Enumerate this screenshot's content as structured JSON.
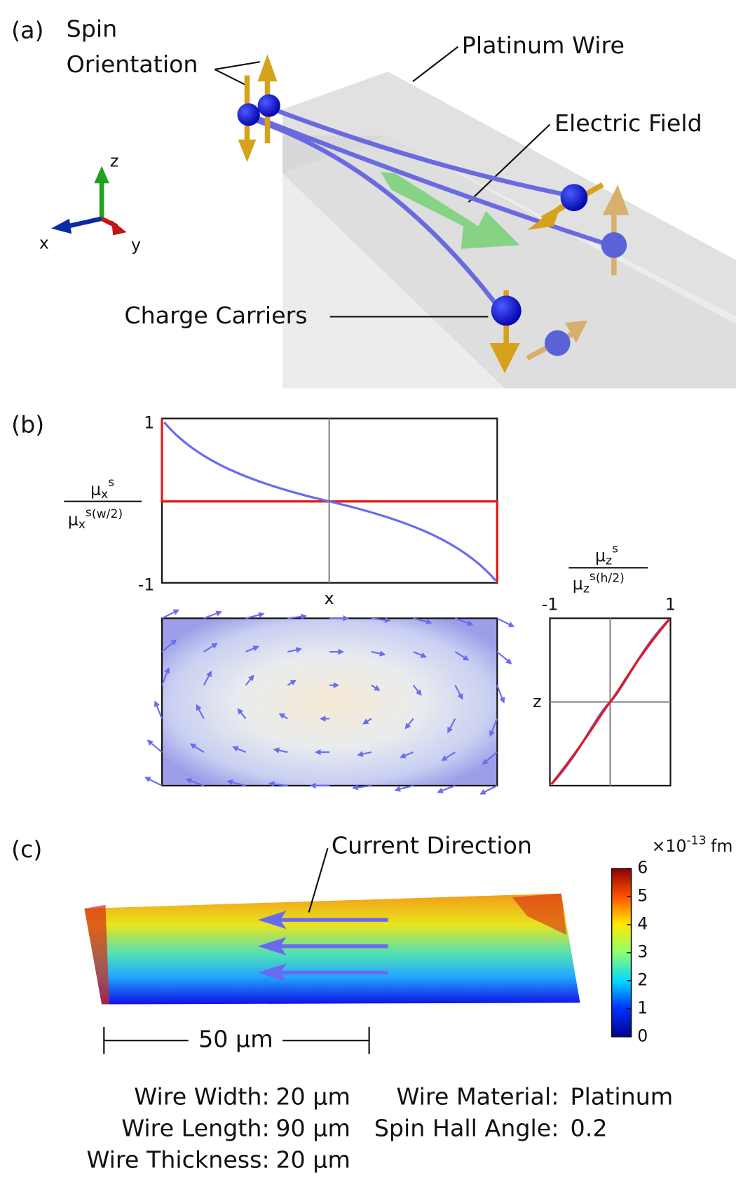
{
  "panel_a": {
    "label": "(a)",
    "spin_orientation": [
      "Spin",
      "Orientation"
    ],
    "platinum_wire": "Platinum Wire",
    "electric_field": "Electric Field",
    "charge_carriers": "Charge Carriers",
    "axes": {
      "x": "x",
      "y": "y",
      "z": "z"
    }
  },
  "panel_b": {
    "label": "(b)",
    "top_plot": {
      "ylabel": {
        "numerator": {
          "base": "μ",
          "sub": "x",
          "sup": "s"
        },
        "denominator": {
          "base": "μ",
          "sub": "x",
          "sup": "s",
          "arg": "(w/2)"
        }
      },
      "ytick_top": 1,
      "ytick_bottom": -1,
      "xlabel": "x"
    },
    "side_plot": {
      "label": {
        "numerator": {
          "base": "μ",
          "sub": "z",
          "sup": "s"
        },
        "denominator": {
          "base": "μ",
          "sub": "z",
          "sup": "s",
          "arg": "(h/2)"
        }
      },
      "xtick_left": -1,
      "xtick_right": 1,
      "ylabel": "z"
    }
  },
  "panel_c": {
    "label": "(c)",
    "current_direction": "Current Direction",
    "colorbar": {
      "prefix": "×10",
      "exponent": "-13",
      "unit": "fm",
      "ticks": [
        0,
        1,
        2,
        3,
        4,
        5,
        6
      ]
    },
    "scale_bar": "50 μm",
    "parameters_left": [
      {
        "label": "Wire Width:",
        "value": "20 μm"
      },
      {
        "label": "Wire Length:",
        "value": "90 μm"
      },
      {
        "label": "Wire Thickness:",
        "value": "20 μm"
      }
    ],
    "parameters_right": [
      {
        "label": "Wire Material:",
        "value": "Platinum"
      },
      {
        "label": "Spin Hall Angle:",
        "value": "0.2"
      }
    ]
  }
}
